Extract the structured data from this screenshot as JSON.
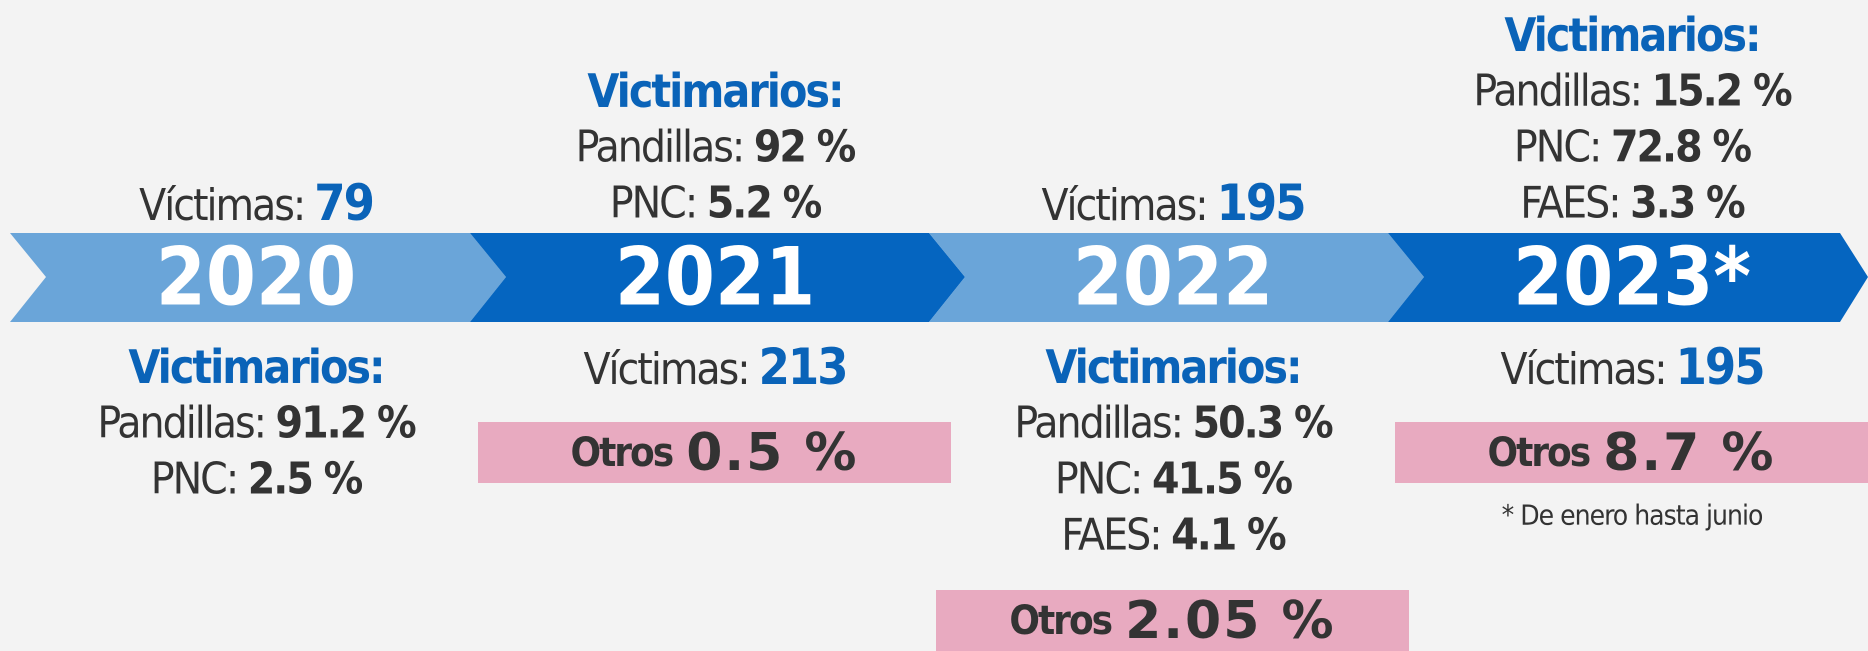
{
  "years": [
    {
      "year": "2020",
      "victims": {
        "label": "Víctimas:",
        "value": "79"
      },
      "perpetrators": {
        "title": "Victimarios:",
        "items": [
          {
            "label": "Pandillas:",
            "value": "91.2 %"
          },
          {
            "label": "PNC:",
            "value": "2.5 %"
          }
        ]
      }
    },
    {
      "year": "2021",
      "victims": {
        "label": "Víctimas:",
        "value": "213"
      },
      "perpetrators": {
        "title": "Victimarios:",
        "items": [
          {
            "label": "Pandillas:",
            "value": "92 %"
          },
          {
            "label": "PNC:",
            "value": "5.2 %"
          }
        ]
      },
      "others": {
        "label": "Otros",
        "value": "0.5 %"
      }
    },
    {
      "year": "2022",
      "victims": {
        "label": "Víctimas:",
        "value": "195"
      },
      "perpetrators": {
        "title": "Victimarios:",
        "items": [
          {
            "label": "Pandillas:",
            "value": "50.3 %"
          },
          {
            "label": "PNC:",
            "value": "41.5 %"
          },
          {
            "label": "FAES:",
            "value": "4.1 %"
          }
        ]
      },
      "others": {
        "label": "Otros",
        "value": "2.05 %"
      }
    },
    {
      "year": "2023*",
      "victims": {
        "label": "Víctimas:",
        "value": "195"
      },
      "perpetrators": {
        "title": "Victimarios:",
        "items": [
          {
            "label": "Pandillas:",
            "value": "15.2 %"
          },
          {
            "label": "PNC:",
            "value": "72.8 %"
          },
          {
            "label": "FAES:",
            "value": "3.3 %"
          }
        ]
      },
      "others": {
        "label": "Otros",
        "value": "8.7 %"
      },
      "footnote": "* De enero hasta junio"
    }
  ]
}
